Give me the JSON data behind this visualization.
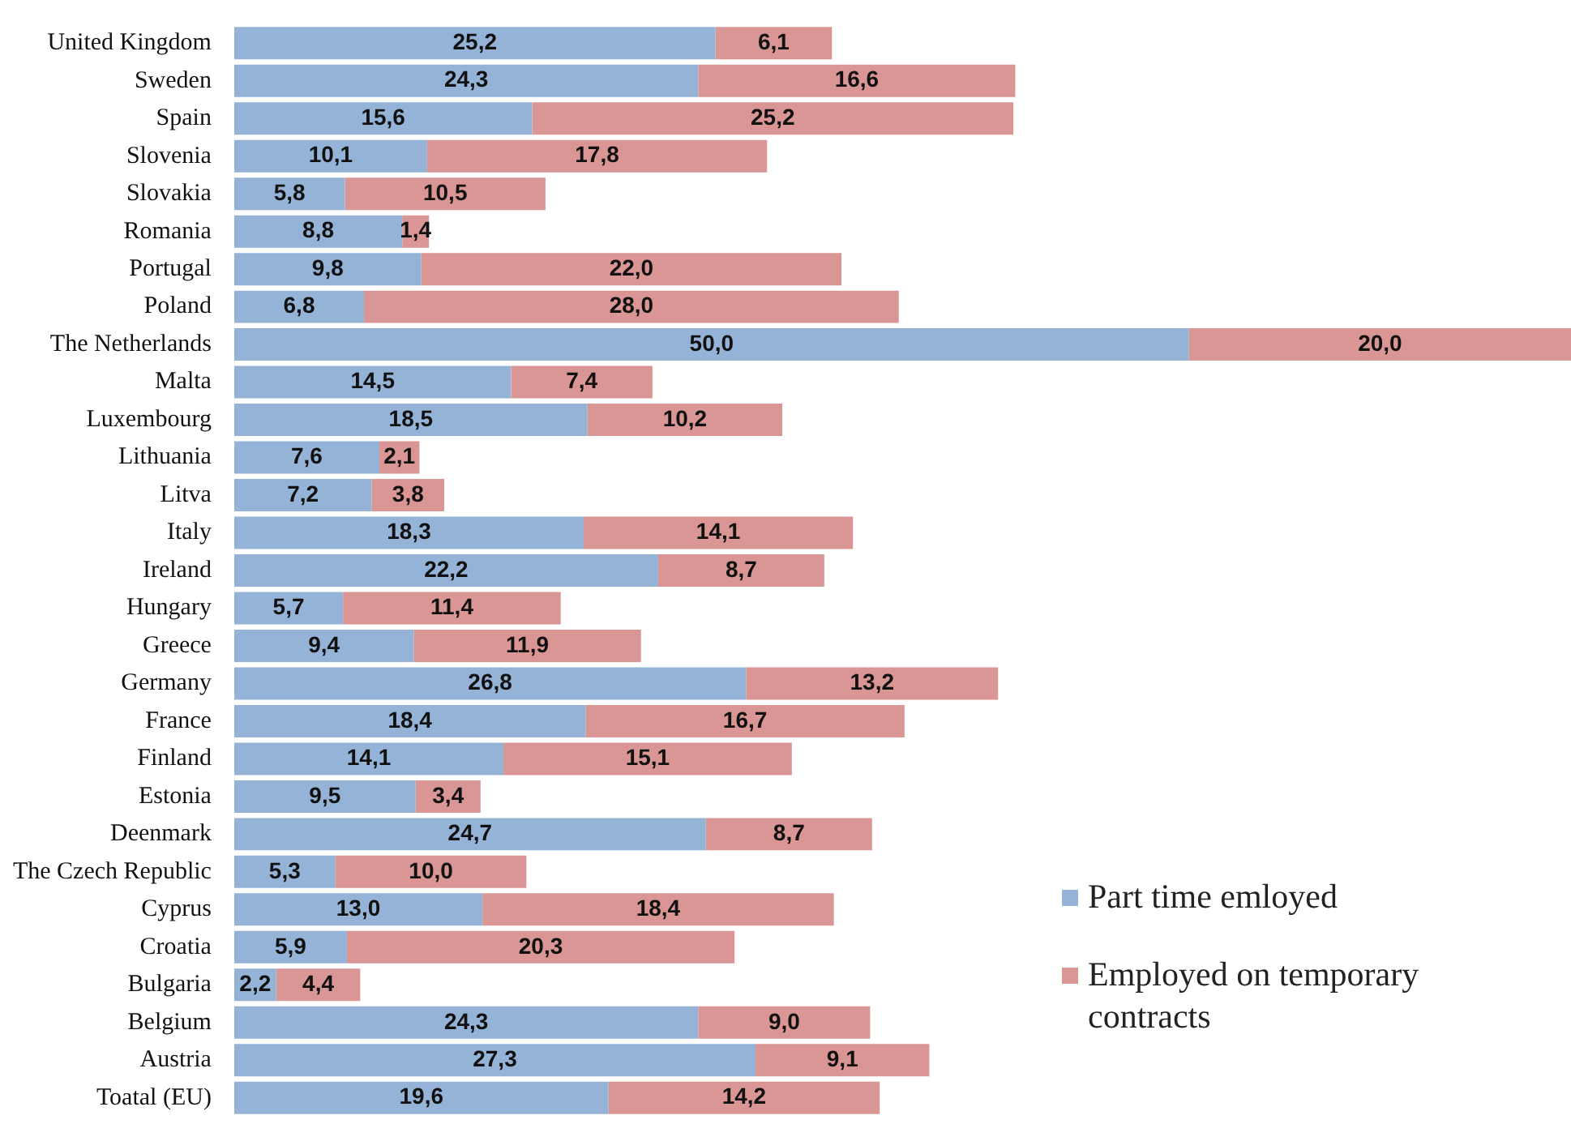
{
  "chart_data": {
    "type": "bar",
    "orientation": "horizontal",
    "stacked": true,
    "grid": false,
    "legend": "bottom right",
    "categories": [
      "United Kingdom",
      "Sweden",
      "Spain",
      "Slovenia",
      "Slovakia",
      "Romania",
      "Portugal",
      "Poland",
      "The Netherlands",
      "Malta",
      "Luxembourg",
      "Lithuania",
      "Litva",
      "Italy",
      "Ireland",
      "Hungary",
      "Greece",
      "Germany",
      "France",
      "Finland",
      "Estonia",
      "Deenmark",
      "The Czech Republic",
      "Cyprus",
      "Croatia",
      "Bulgaria",
      "Belgium",
      "Austria",
      "Toatal (EU)"
    ],
    "series": [
      {
        "name": "Part time emloyed",
        "color": "#95b3d7",
        "values": [
          25.2,
          24.3,
          15.6,
          10.1,
          5.8,
          8.8,
          9.8,
          6.8,
          50.0,
          14.5,
          18.5,
          7.6,
          7.2,
          18.3,
          22.2,
          5.7,
          9.4,
          26.8,
          18.4,
          14.1,
          9.5,
          24.7,
          5.3,
          13.0,
          5.9,
          2.2,
          24.3,
          27.3,
          19.6
        ],
        "value_labels": [
          "25,2",
          "24,3",
          "15,6",
          "10,1",
          "5,8",
          "8,8",
          "9,8",
          "6,8",
          "50,0",
          "14,5",
          "18,5",
          "7,6",
          "7,2",
          "18,3",
          "22,2",
          "5,7",
          "9,4",
          "26,8",
          "18,4",
          "14,1",
          "9,5",
          "24,7",
          "5,3",
          "13,0",
          "5,9",
          "2,2",
          "24,3",
          "27,3",
          "19,6"
        ]
      },
      {
        "name": "Employed on temporary contracts",
        "color": "#d99694",
        "values": [
          6.1,
          16.6,
          25.2,
          17.8,
          10.5,
          1.4,
          22.0,
          28.0,
          20.0,
          7.4,
          10.2,
          2.1,
          3.8,
          14.1,
          8.7,
          11.4,
          11.9,
          13.2,
          16.7,
          15.1,
          3.4,
          8.7,
          10.0,
          18.4,
          20.3,
          4.4,
          9.0,
          9.1,
          14.2
        ],
        "value_labels": [
          "6,1",
          "16,6",
          "25,2",
          "17,8",
          "10,5",
          "1,4",
          "22,0",
          "28,0",
          "20,0",
          "7,4",
          "10,2",
          "2,1",
          "3,8",
          "14,1",
          "8,7",
          "11,4",
          "11,9",
          "13,2",
          "16,7",
          "15,1",
          "3,4",
          "8,7",
          "10,0",
          "18,4",
          "20,3",
          "4,4",
          "9,0",
          "9,1",
          "14,2"
        ]
      }
    ]
  }
}
